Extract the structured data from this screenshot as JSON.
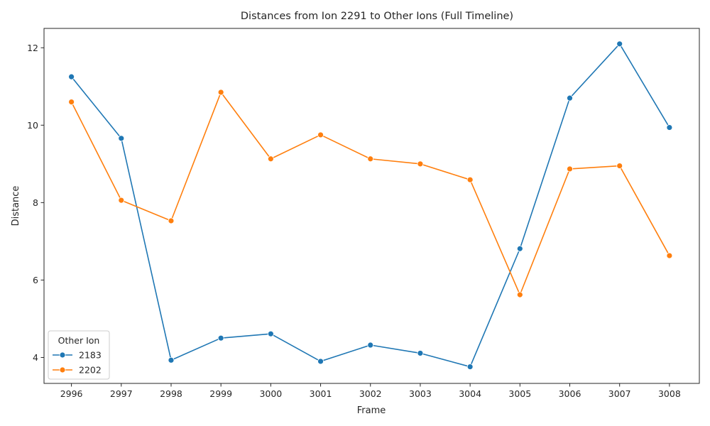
{
  "chart_data": {
    "type": "line",
    "title": "Distances from Ion 2291 to Other Ions (Full Timeline)",
    "xlabel": "Frame",
    "ylabel": "Distance",
    "x": [
      2996,
      2997,
      2998,
      2999,
      3000,
      3001,
      3002,
      3003,
      3004,
      3005,
      3006,
      3007,
      3008
    ],
    "xlim": [
      2995.45,
      3008.6
    ],
    "ylim": [
      3.33,
      12.5
    ],
    "yticks": [
      4,
      6,
      8,
      10,
      12
    ],
    "grid": false,
    "legend": {
      "title": "Other Ion",
      "placement": "lower-left"
    },
    "series": [
      {
        "name": "2183",
        "color": "#1f77b4",
        "marker": "circle",
        "values": [
          11.25,
          9.66,
          3.93,
          4.5,
          4.61,
          3.9,
          4.32,
          4.11,
          3.76,
          6.81,
          10.7,
          12.1,
          9.94
        ]
      },
      {
        "name": "2202",
        "color": "#ff7f0e",
        "marker": "circle",
        "values": [
          10.6,
          8.06,
          7.53,
          10.85,
          9.13,
          9.75,
          9.13,
          9.0,
          8.59,
          5.62,
          8.87,
          8.95,
          6.63
        ]
      }
    ]
  }
}
